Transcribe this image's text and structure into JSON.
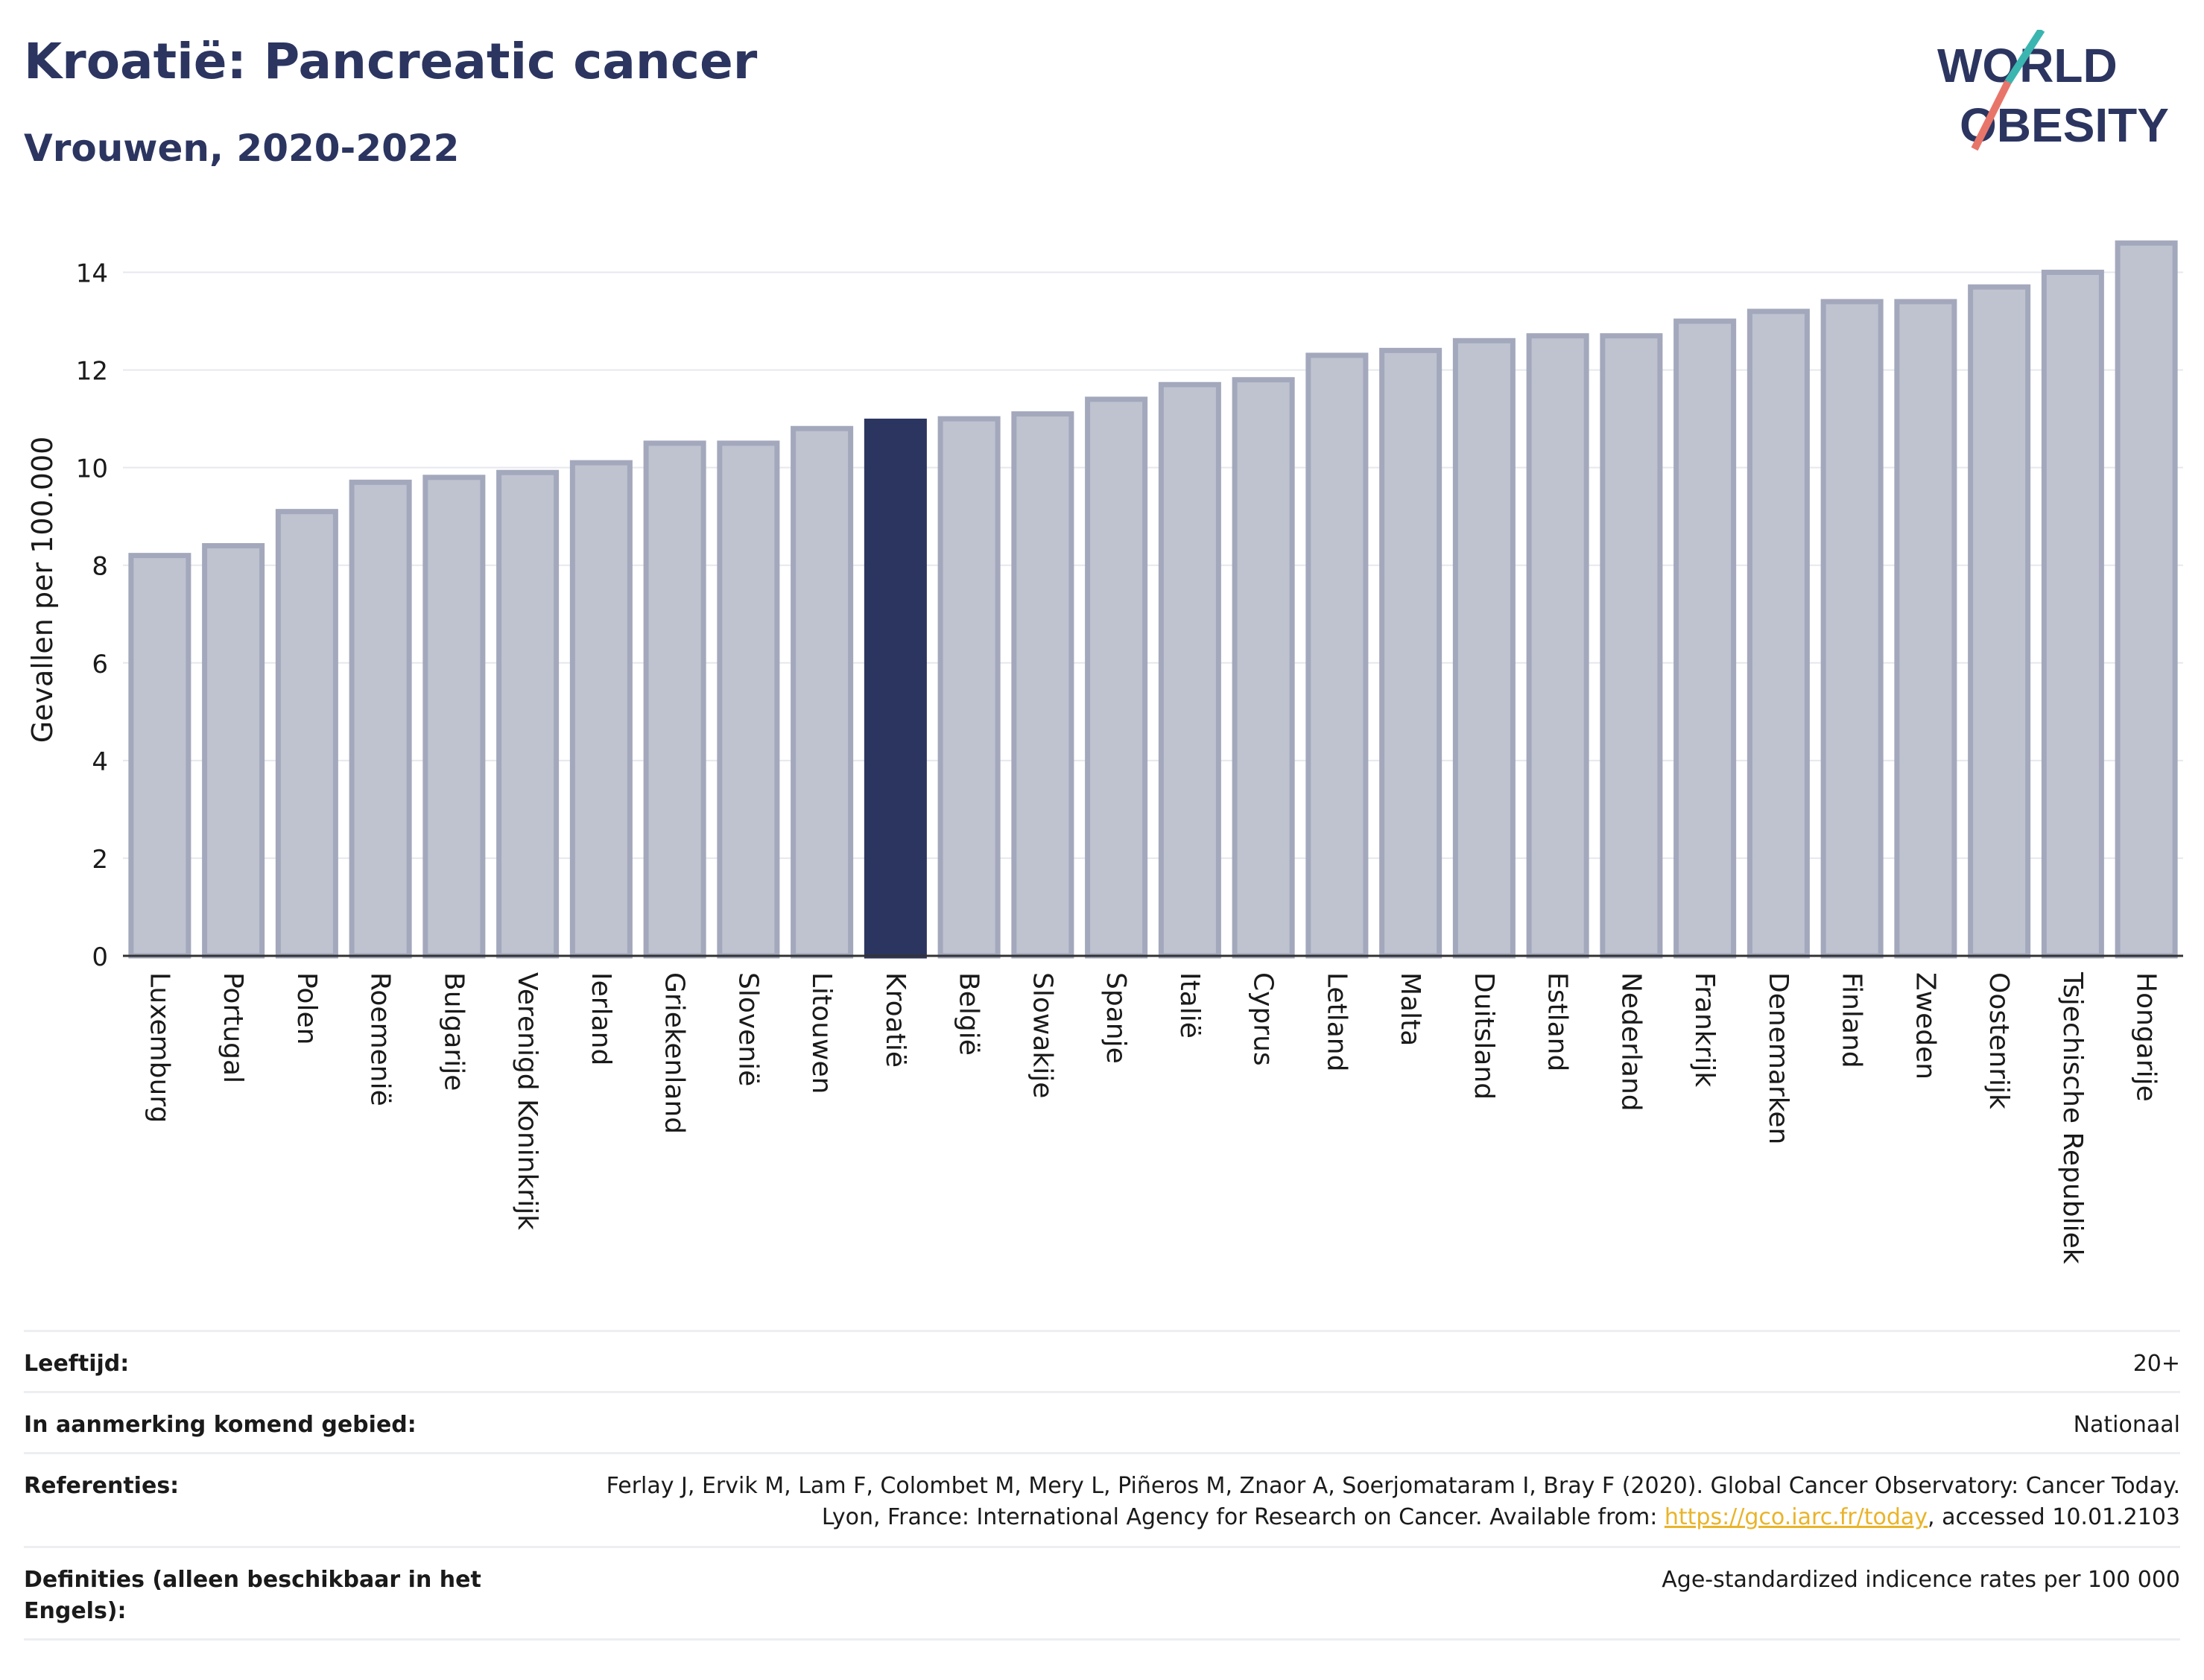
{
  "header": {
    "title": "Kroatië: Pancreatic cancer",
    "subtitle": "Vrouwen, 2020-2022"
  },
  "logo": {
    "line1": "WORLD",
    "line2": "OBESITY"
  },
  "colors": {
    "bar": "#bfc3d0",
    "bar_stroke": "#a3a8bc",
    "highlight": "#2b3560",
    "title": "#2b3560",
    "logo_teal": "#3ab5b0",
    "logo_coral": "#e8756a",
    "link": "#e9b42a"
  },
  "chart_data": {
    "type": "bar",
    "ylabel": "Gevallen per 100.000",
    "ylim": [
      0,
      15
    ],
    "yticks": [
      0,
      2,
      4,
      6,
      8,
      10,
      12,
      14
    ],
    "grid": true,
    "highlight": "Kroatië",
    "categories": [
      "Luxemburg",
      "Portugal",
      "Polen",
      "Roemenië",
      "Bulgarije",
      "Verenigd Koninkrijk",
      "Ierland",
      "Griekenland",
      "Slovenië",
      "Litouwen",
      "Kroatië",
      "België",
      "Slowakije",
      "Spanje",
      "Italië",
      "Cyprus",
      "Letland",
      "Malta",
      "Duitsland",
      "Estland",
      "Nederland",
      "Frankrijk",
      "Denemarken",
      "Finland",
      "Zweden",
      "Oostenrijk",
      "Tsjechische Republiek",
      "Hongarije"
    ],
    "values": [
      8.2,
      8.4,
      9.1,
      9.7,
      9.8,
      9.9,
      10.1,
      10.5,
      10.5,
      10.8,
      10.95,
      11.0,
      11.1,
      11.4,
      11.7,
      11.8,
      12.3,
      12.4,
      12.6,
      12.7,
      12.7,
      13.0,
      13.2,
      13.4,
      13.4,
      13.7,
      14.0,
      14.6
    ]
  },
  "meta": [
    {
      "label": "Leeftijd:",
      "value": "20+"
    },
    {
      "label": "In aanmerking komend gebied:",
      "value": "Nationaal"
    },
    {
      "label": "Referenties:",
      "value_pre": "Ferlay J, Ervik M, Lam F, Colombet M, Mery L, Piñeros M, Znaor A, Soerjomataram I, Bray F (2020). Global Cancer Observatory: Cancer Today. Lyon, France: International Agency for Research on Cancer. Available from: ",
      "link": "https://gco.iarc.fr/today",
      "value_post": ", accessed 10.01.2103"
    },
    {
      "label": "Definities (alleen beschikbaar in het Engels):",
      "value": "Age-standardized indicence rates per 100 000"
    }
  ]
}
